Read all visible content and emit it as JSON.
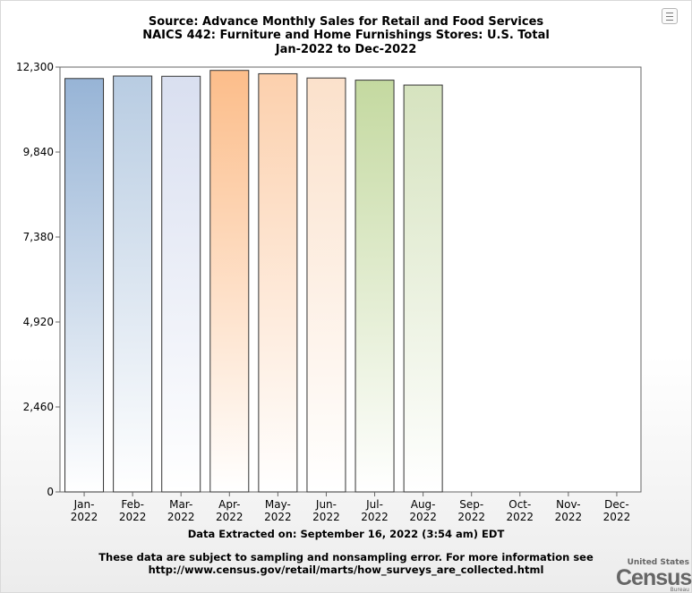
{
  "header": {
    "title_line1": "Source: Advance Monthly Sales for Retail and Food Services",
    "title_line2": "NAICS 442: Furniture and Home Furnishings Stores: U.S. Total",
    "title_line3": "Jan-2022 to Dec-2022"
  },
  "footer": {
    "extracted": "Data Extracted on: September 16, 2022 (3:54 am) EDT",
    "note_line1": "These data are subject to sampling and nonsampling error. For more information see",
    "note_line2": "http://www.census.gov/retail/marts/how_surveys_are_collected.html"
  },
  "logo": {
    "top": "United States",
    "main": "Census",
    "bottom": "Bureau"
  },
  "colors": {
    "bar_gradients": [
      [
        "#97b4d6",
        "#ffffff"
      ],
      [
        "#b8cce2",
        "#ffffff"
      ],
      [
        "#d9dff0",
        "#ffffff"
      ],
      [
        "#fcbd8a",
        "#ffffff"
      ],
      [
        "#fcd0ad",
        "#ffffff"
      ],
      [
        "#fbe1cb",
        "#ffffff"
      ],
      [
        "#c4d9a0",
        "#ffffff"
      ],
      [
        "#d6e3bf",
        "#ffffff"
      ]
    ],
    "bar_stroke": "#333333",
    "axis": "#666666"
  },
  "chart_data": {
    "type": "bar",
    "categories": [
      "Jan-2022",
      "Feb-2022",
      "Mar-2022",
      "Apr-2022",
      "May-2022",
      "Jun-2022",
      "Jul-2022",
      "Aug-2022",
      "Sep-2022",
      "Oct-2022",
      "Nov-2022",
      "Dec-2022"
    ],
    "category_lines": [
      [
        "Jan-",
        "2022"
      ],
      [
        "Feb-",
        "2022"
      ],
      [
        "Mar-",
        "2022"
      ],
      [
        "Apr-",
        "2022"
      ],
      [
        "May-",
        "2022"
      ],
      [
        "Jun-",
        "2022"
      ],
      [
        "Jul-",
        "2022"
      ],
      [
        "Aug-",
        "2022"
      ],
      [
        "Sep-",
        "2022"
      ],
      [
        "Oct-",
        "2022"
      ],
      [
        "Nov-",
        "2022"
      ],
      [
        "Dec-",
        "2022"
      ]
    ],
    "values": [
      11969,
      12041,
      12034,
      12204,
      12107,
      11984,
      11922,
      11780,
      null,
      null,
      null,
      null
    ],
    "ylim": [
      0,
      12300
    ],
    "yticks": [
      0,
      2460,
      4920,
      7380,
      9840,
      12300
    ],
    "ytick_labels": [
      "0",
      "2,460",
      "4,920",
      "7,380",
      "9,840",
      "12,300"
    ],
    "grid": false
  }
}
